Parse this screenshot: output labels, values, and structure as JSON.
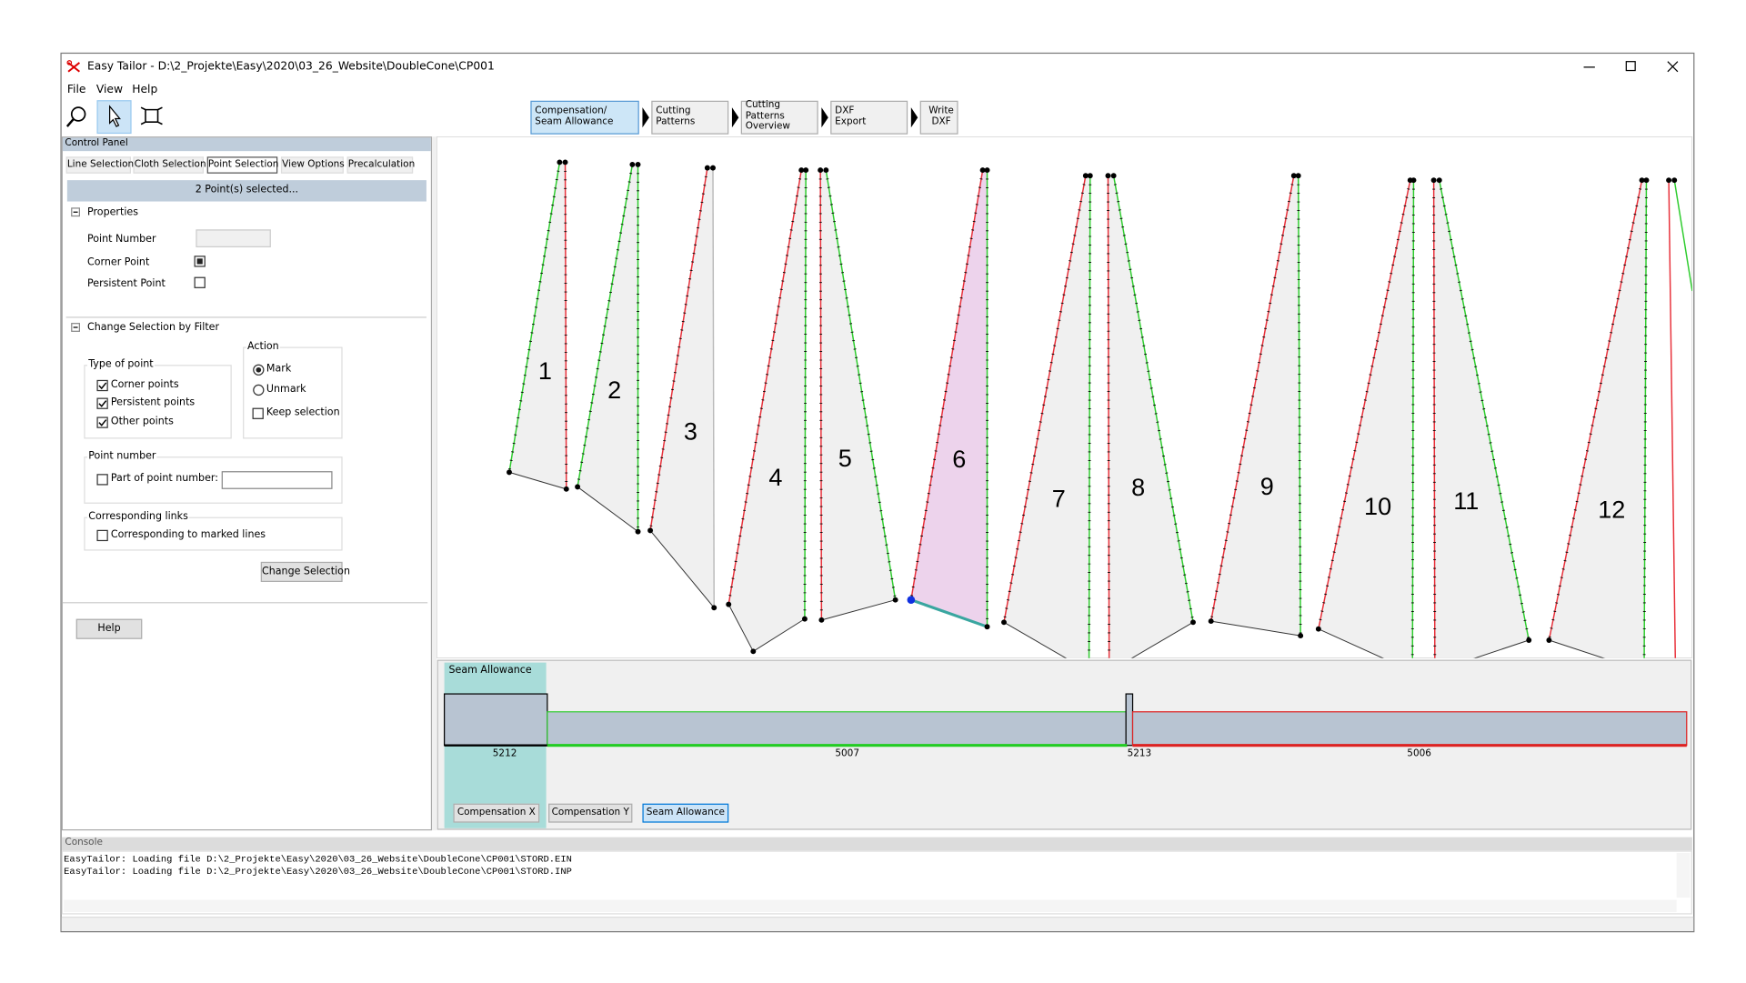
{
  "window": {
    "title": "Easy Tailor - D:\\2_Projekte\\Easy\\2020\\03_26_Website\\DoubleCone\\CP001"
  },
  "menu": [
    "File",
    "View",
    "Help"
  ],
  "workflow": [
    "Compensation/\nSeam Allowance",
    "Cutting\nPatterns",
    "Cutting\nPatterns\nOverview",
    "DXF\nExport",
    "Write\nDXF"
  ],
  "control_panel": {
    "title": "Control Panel",
    "tabs": [
      "Line Selection",
      "Cloth Selection",
      "Point Selection",
      "View Options",
      "Precalculation"
    ],
    "status": "2 Point(s) selected...",
    "properties": {
      "title": "Properties",
      "fields": [
        "Point Number",
        "Corner Point",
        "Persistent Point"
      ]
    },
    "filter": {
      "title": "Change Selection by Filter",
      "type_of_point": {
        "title": "Type of point",
        "options": [
          "Corner points",
          "Persistent points",
          "Other points"
        ]
      },
      "action": {
        "title": "Action",
        "options": [
          "Mark",
          "Unmark",
          "Keep selection"
        ]
      },
      "point_number": {
        "title": "Point number",
        "option": "Part of point number:"
      },
      "corresponding_links": {
        "title": "Corresponding links",
        "option": "Corresponding to marked lines"
      },
      "button": "Change Selection"
    },
    "help_button": "Help"
  },
  "canvas": {
    "pattern_labels": [
      "1",
      "2",
      "3",
      "4",
      "5",
      "6",
      "7",
      "8",
      "9",
      "10",
      "11",
      "12"
    ]
  },
  "seam_panel": {
    "title": "Seam Allowance",
    "segments": [
      "5212",
      "5007",
      "5213",
      "5006"
    ],
    "buttons": [
      "Compensation X",
      "Compensation Y",
      "Seam Allowance"
    ]
  },
  "console": {
    "title": "Console",
    "lines": [
      "EasyTailor: Loading file D:\\2_Projekte\\Easy\\2020\\03_26_Website\\DoubleCone\\CP001\\STORD.EIN",
      "EasyTailor: Loading file D:\\2_Projekte\\Easy\\2020\\03_26_Website\\DoubleCone\\CP001\\STORD.INP"
    ]
  }
}
